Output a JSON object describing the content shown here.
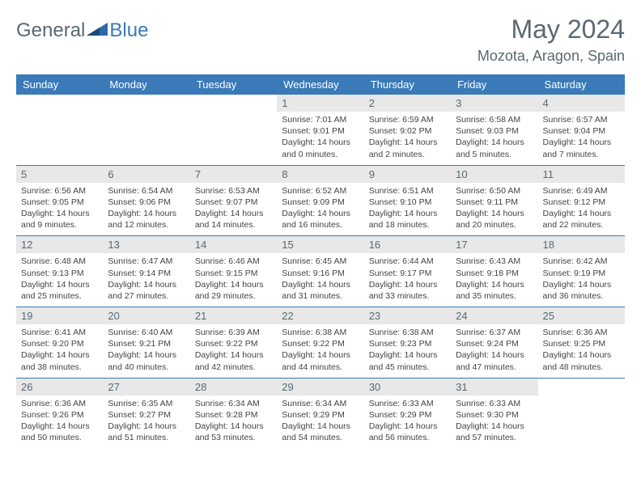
{
  "logo": {
    "text1": "General",
    "text2": "Blue"
  },
  "title": "May 2024",
  "location": "Mozota, Aragon, Spain",
  "colors": {
    "header_bg": "#3a7ab8",
    "header_text": "#ffffff",
    "daynum_bg": "#e8e8e8",
    "daynum_text": "#5a6870",
    "border": "#3a7ab8"
  },
  "weekdays": [
    "Sunday",
    "Monday",
    "Tuesday",
    "Wednesday",
    "Thursday",
    "Friday",
    "Saturday"
  ],
  "weeks": [
    [
      null,
      null,
      null,
      {
        "n": "1",
        "sr": "7:01 AM",
        "ss": "9:01 PM",
        "dl": "14 hours and 0 minutes."
      },
      {
        "n": "2",
        "sr": "6:59 AM",
        "ss": "9:02 PM",
        "dl": "14 hours and 2 minutes."
      },
      {
        "n": "3",
        "sr": "6:58 AM",
        "ss": "9:03 PM",
        "dl": "14 hours and 5 minutes."
      },
      {
        "n": "4",
        "sr": "6:57 AM",
        "ss": "9:04 PM",
        "dl": "14 hours and 7 minutes."
      }
    ],
    [
      {
        "n": "5",
        "sr": "6:56 AM",
        "ss": "9:05 PM",
        "dl": "14 hours and 9 minutes."
      },
      {
        "n": "6",
        "sr": "6:54 AM",
        "ss": "9:06 PM",
        "dl": "14 hours and 12 minutes."
      },
      {
        "n": "7",
        "sr": "6:53 AM",
        "ss": "9:07 PM",
        "dl": "14 hours and 14 minutes."
      },
      {
        "n": "8",
        "sr": "6:52 AM",
        "ss": "9:09 PM",
        "dl": "14 hours and 16 minutes."
      },
      {
        "n": "9",
        "sr": "6:51 AM",
        "ss": "9:10 PM",
        "dl": "14 hours and 18 minutes."
      },
      {
        "n": "10",
        "sr": "6:50 AM",
        "ss": "9:11 PM",
        "dl": "14 hours and 20 minutes."
      },
      {
        "n": "11",
        "sr": "6:49 AM",
        "ss": "9:12 PM",
        "dl": "14 hours and 22 minutes."
      }
    ],
    [
      {
        "n": "12",
        "sr": "6:48 AM",
        "ss": "9:13 PM",
        "dl": "14 hours and 25 minutes."
      },
      {
        "n": "13",
        "sr": "6:47 AM",
        "ss": "9:14 PM",
        "dl": "14 hours and 27 minutes."
      },
      {
        "n": "14",
        "sr": "6:46 AM",
        "ss": "9:15 PM",
        "dl": "14 hours and 29 minutes."
      },
      {
        "n": "15",
        "sr": "6:45 AM",
        "ss": "9:16 PM",
        "dl": "14 hours and 31 minutes."
      },
      {
        "n": "16",
        "sr": "6:44 AM",
        "ss": "9:17 PM",
        "dl": "14 hours and 33 minutes."
      },
      {
        "n": "17",
        "sr": "6:43 AM",
        "ss": "9:18 PM",
        "dl": "14 hours and 35 minutes."
      },
      {
        "n": "18",
        "sr": "6:42 AM",
        "ss": "9:19 PM",
        "dl": "14 hours and 36 minutes."
      }
    ],
    [
      {
        "n": "19",
        "sr": "6:41 AM",
        "ss": "9:20 PM",
        "dl": "14 hours and 38 minutes."
      },
      {
        "n": "20",
        "sr": "6:40 AM",
        "ss": "9:21 PM",
        "dl": "14 hours and 40 minutes."
      },
      {
        "n": "21",
        "sr": "6:39 AM",
        "ss": "9:22 PM",
        "dl": "14 hours and 42 minutes."
      },
      {
        "n": "22",
        "sr": "6:38 AM",
        "ss": "9:22 PM",
        "dl": "14 hours and 44 minutes."
      },
      {
        "n": "23",
        "sr": "6:38 AM",
        "ss": "9:23 PM",
        "dl": "14 hours and 45 minutes."
      },
      {
        "n": "24",
        "sr": "6:37 AM",
        "ss": "9:24 PM",
        "dl": "14 hours and 47 minutes."
      },
      {
        "n": "25",
        "sr": "6:36 AM",
        "ss": "9:25 PM",
        "dl": "14 hours and 48 minutes."
      }
    ],
    [
      {
        "n": "26",
        "sr": "6:36 AM",
        "ss": "9:26 PM",
        "dl": "14 hours and 50 minutes."
      },
      {
        "n": "27",
        "sr": "6:35 AM",
        "ss": "9:27 PM",
        "dl": "14 hours and 51 minutes."
      },
      {
        "n": "28",
        "sr": "6:34 AM",
        "ss": "9:28 PM",
        "dl": "14 hours and 53 minutes."
      },
      {
        "n": "29",
        "sr": "6:34 AM",
        "ss": "9:29 PM",
        "dl": "14 hours and 54 minutes."
      },
      {
        "n": "30",
        "sr": "6:33 AM",
        "ss": "9:29 PM",
        "dl": "14 hours and 56 minutes."
      },
      {
        "n": "31",
        "sr": "6:33 AM",
        "ss": "9:30 PM",
        "dl": "14 hours and 57 minutes."
      },
      null
    ]
  ],
  "labels": {
    "sunrise": "Sunrise:",
    "sunset": "Sunset:",
    "daylight": "Daylight:"
  }
}
